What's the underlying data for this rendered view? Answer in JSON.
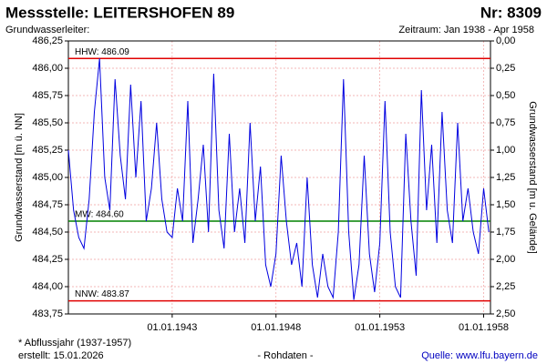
{
  "chart_data": {
    "type": "line",
    "title": "Messstelle: LEITERSHOFEN 89",
    "station_number": "Nr: 8309",
    "subtitle": "Grundwasserleiter:",
    "period": "Zeitraum: Jan 1938 - Apr 1958",
    "y_label": "Grundwasserstand [m ü. NN]",
    "y2_label": "Grundwasserstand [m u. Gelände]",
    "footnote": "* Abflussjahr (1937-1957)",
    "created": "erstellt:  15.01.2026",
    "data_note": "- Rohdaten -",
    "source": "Quelle: www.lfu.bayern.de",
    "grid": true,
    "xlim": [
      1938,
      1958.33
    ],
    "xticks": [
      {
        "value": 1943,
        "label": "01.01.1943"
      },
      {
        "value": 1948,
        "label": "01.01.1948"
      },
      {
        "value": 1953,
        "label": "01.01.1953"
      },
      {
        "value": 1958,
        "label": "01.01.1958"
      }
    ],
    "ylim": [
      483.75,
      486.25
    ],
    "yticks": [
      {
        "value": 483.75,
        "label": "483,75"
      },
      {
        "value": 484,
        "label": "484,00"
      },
      {
        "value": 484.25,
        "label": "484,25"
      },
      {
        "value": 484.5,
        "label": "484,50"
      },
      {
        "value": 484.75,
        "label": "484,75"
      },
      {
        "value": 485,
        "label": "485,00"
      },
      {
        "value": 485.25,
        "label": "485,25"
      },
      {
        "value": 485.5,
        "label": "485,50"
      },
      {
        "value": 485.75,
        "label": "485,75"
      },
      {
        "value": 486,
        "label": "486,00"
      },
      {
        "value": 486.25,
        "label": "486,25"
      }
    ],
    "y2lim": [
      2.5,
      0
    ],
    "y2ticks": [
      {
        "value": 2.5,
        "label": "2,50"
      },
      {
        "value": 2.25,
        "label": "2,25"
      },
      {
        "value": 2,
        "label": "2,00"
      },
      {
        "value": 1.75,
        "label": "1,75"
      },
      {
        "value": 1.5,
        "label": "1,50"
      },
      {
        "value": 1.25,
        "label": "1,25"
      },
      {
        "value": 1,
        "label": "1,00"
      },
      {
        "value": 0.75,
        "label": "0,75"
      },
      {
        "value": 0.5,
        "label": "0,50"
      },
      {
        "value": 0.25,
        "label": "0,25"
      },
      {
        "value": 0,
        "label": "0,00"
      }
    ],
    "reference_lines": [
      {
        "label": "HHW: 486.09",
        "value": 486.09,
        "color": "#e00000"
      },
      {
        "label": "MW: 484.60",
        "value": 484.6,
        "color": "#008000"
      },
      {
        "label": "NNW: 483.87",
        "value": 483.87,
        "color": "#e00000"
      }
    ],
    "x": [
      1938,
      1938.25,
      1938.5,
      1938.75,
      1939,
      1939.25,
      1939.5,
      1939.75,
      1940,
      1940.25,
      1940.5,
      1940.75,
      1941,
      1941.25,
      1941.5,
      1941.75,
      1942,
      1942.25,
      1942.5,
      1942.75,
      1943,
      1943.25,
      1943.5,
      1943.75,
      1944,
      1944.25,
      1944.5,
      1944.75,
      1945,
      1945.25,
      1945.5,
      1945.75,
      1946,
      1946.25,
      1946.5,
      1946.75,
      1947,
      1947.25,
      1947.5,
      1947.75,
      1948,
      1948.25,
      1948.5,
      1948.75,
      1949,
      1949.25,
      1949.5,
      1949.75,
      1950,
      1950.25,
      1950.5,
      1950.75,
      1951,
      1951.25,
      1951.5,
      1951.75,
      1952,
      1952.25,
      1952.5,
      1952.75,
      1953,
      1953.25,
      1953.5,
      1953.75,
      1954,
      1954.25,
      1954.5,
      1954.75,
      1955,
      1955.25,
      1955.5,
      1955.75,
      1956,
      1956.25,
      1956.5,
      1956.75,
      1957,
      1957.25,
      1957.5,
      1957.75,
      1958,
      1958.25
    ],
    "series": [
      {
        "color": "#0000e0",
        "values": [
          485.25,
          484.7,
          484.45,
          484.35,
          484.8,
          485.6,
          486.09,
          485.0,
          484.7,
          485.9,
          485.2,
          484.8,
          485.85,
          485.0,
          485.7,
          484.6,
          484.9,
          485.5,
          484.8,
          484.5,
          484.45,
          484.9,
          484.6,
          485.7,
          484.4,
          484.8,
          485.3,
          484.5,
          485.95,
          484.7,
          484.35,
          485.4,
          484.5,
          484.9,
          484.4,
          485.5,
          484.6,
          485.1,
          484.2,
          484.0,
          484.3,
          485.2,
          484.6,
          484.2,
          484.4,
          484.0,
          485.0,
          484.2,
          483.9,
          484.3,
          484.0,
          483.9,
          484.5,
          485.9,
          484.5,
          483.88,
          484.2,
          485.2,
          484.3,
          483.95,
          484.4,
          485.7,
          484.5,
          484.0,
          483.9,
          485.4,
          484.6,
          484.1,
          485.8,
          484.7,
          485.3,
          484.4,
          485.6,
          484.7,
          484.4,
          485.5,
          484.6,
          484.9,
          484.5,
          484.3,
          484.9,
          484.5
        ]
      }
    ]
  }
}
